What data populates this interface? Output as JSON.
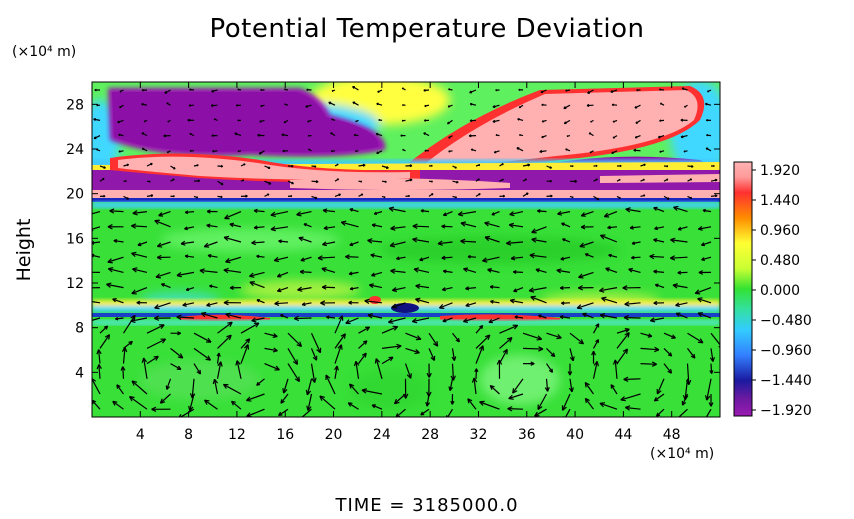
{
  "chart_data": {
    "type": "heatmap",
    "title": "Potential Temperature Deviation",
    "ylabel": "Height",
    "y_unit": "(×10⁴ m)",
    "x_unit": "(×10⁴ m)",
    "footer": "TIME = 3185000.0",
    "x_ticks": [
      "4",
      "8",
      "12",
      "16",
      "20",
      "24",
      "28",
      "32",
      "36",
      "40",
      "44",
      "48"
    ],
    "y_ticks": [
      "4",
      "8",
      "12",
      "16",
      "20",
      "24",
      "28"
    ],
    "xlim": [
      0,
      52
    ],
    "ylim": [
      0,
      30
    ],
    "colorbar": {
      "ticks": [
        "1.920",
        "1.440",
        "0.960",
        "0.480",
        "0.000",
        "−0.480",
        "−0.960",
        "−1.440",
        "−1.920"
      ],
      "range": [
        -1.92,
        1.92
      ]
    },
    "field_description": "potential temperature deviation with overlaid wind vectors"
  }
}
